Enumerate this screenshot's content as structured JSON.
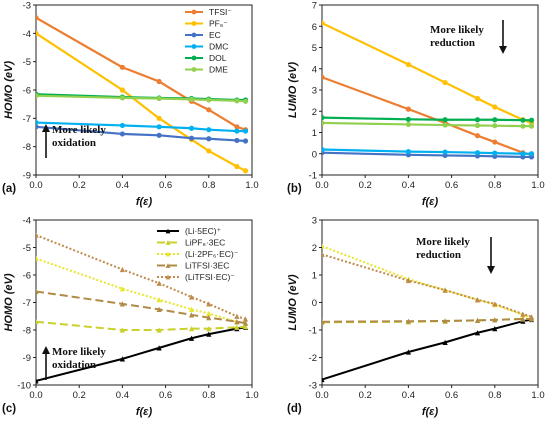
{
  "chart_data": [
    {
      "type": "line",
      "panel_label": "(a)",
      "xlabel": "f(ε)",
      "ylabel": "HOMO (eV)",
      "xlim": [
        0,
        1.0
      ],
      "ylim": [
        -9,
        -3
      ],
      "xticks": [
        "0.0",
        "0.2",
        "0.4",
        "0.6",
        "0.8",
        "1.0"
      ],
      "yticks": [
        "-9",
        "-8",
        "-7",
        "-6",
        "-5",
        "-4",
        "-3"
      ],
      "legend_position": "top-right",
      "annotation": {
        "lines": [
          "More likely",
          "oxidation"
        ],
        "arrow": "up"
      },
      "x": [
        0,
        0.4,
        0.57,
        0.72,
        0.8,
        0.93,
        0.97
      ],
      "series": [
        {
          "name": "TFSI⁻",
          "color": "#ED7D31",
          "values": [
            -3.45,
            -5.2,
            -5.7,
            -6.4,
            -6.7,
            -7.3,
            -7.4
          ]
        },
        {
          "name": "PF₆⁻",
          "color": "#FFC000",
          "values": [
            -4.0,
            -6.0,
            -7.0,
            -7.75,
            -8.15,
            -8.7,
            -8.85
          ]
        },
        {
          "name": "EC",
          "color": "#4472C4",
          "values": [
            -7.3,
            -7.55,
            -7.6,
            -7.7,
            -7.72,
            -7.78,
            -7.8
          ]
        },
        {
          "name": "DMC",
          "color": "#00B0F0",
          "values": [
            -7.15,
            -7.25,
            -7.3,
            -7.35,
            -7.4,
            -7.45,
            -7.45
          ]
        },
        {
          "name": "DOL",
          "color": "#00B050",
          "values": [
            -6.15,
            -6.25,
            -6.28,
            -6.3,
            -6.32,
            -6.35,
            -6.35
          ]
        },
        {
          "name": "DME",
          "color": "#92D050",
          "values": [
            -6.2,
            -6.28,
            -6.3,
            -6.33,
            -6.35,
            -6.38,
            -6.4
          ]
        }
      ]
    },
    {
      "type": "line",
      "panel_label": "(b)",
      "xlabel": "f(ε)",
      "ylabel": "LUMO (eV)",
      "xlim": [
        0,
        1.0
      ],
      "ylim": [
        -1,
        7
      ],
      "xticks": [
        "0.0",
        "0.2",
        "0.4",
        "0.6",
        "0.8",
        "1.0"
      ],
      "yticks": [
        "-1",
        "0",
        "1",
        "2",
        "3",
        "4",
        "5",
        "6",
        "7"
      ],
      "annotation": {
        "lines": [
          "More likely",
          "reduction"
        ],
        "arrow": "down"
      },
      "x": [
        0,
        0.4,
        0.57,
        0.72,
        0.8,
        0.93,
        0.97
      ],
      "series": [
        {
          "name": "TFSI⁻",
          "color": "#ED7D31",
          "values": [
            3.6,
            2.1,
            1.45,
            0.85,
            0.55,
            0.05,
            -0.05
          ]
        },
        {
          "name": "PF₆⁻",
          "color": "#FFC000",
          "values": [
            6.15,
            4.2,
            3.35,
            2.6,
            2.2,
            1.6,
            1.45
          ]
        },
        {
          "name": "EC",
          "color": "#4472C4",
          "values": [
            0.05,
            -0.05,
            -0.08,
            -0.1,
            -0.12,
            -0.15,
            -0.15
          ]
        },
        {
          "name": "DMC",
          "color": "#00B0F0",
          "values": [
            0.2,
            0.1,
            0.08,
            0.05,
            0.03,
            0.0,
            0.0
          ]
        },
        {
          "name": "DOL",
          "color": "#00B050",
          "values": [
            1.7,
            1.62,
            1.6,
            1.6,
            1.6,
            1.58,
            1.58
          ]
        },
        {
          "name": "DME",
          "color": "#92D050",
          "values": [
            1.45,
            1.38,
            1.35,
            1.33,
            1.32,
            1.3,
            1.3
          ]
        }
      ]
    },
    {
      "type": "line",
      "panel_label": "(c)",
      "xlabel": "f(ε)",
      "ylabel": "HOMO (eV)",
      "xlim": [
        0,
        1.0
      ],
      "ylim": [
        -10,
        -4
      ],
      "xticks": [
        "0.0",
        "0.2",
        "0.4",
        "0.6",
        "0.8",
        "1.0"
      ],
      "yticks": [
        "-10",
        "-9",
        "-8",
        "-7",
        "-6",
        "-5",
        "-4"
      ],
      "legend_position": "top-right",
      "annotation": {
        "lines": [
          "More likely",
          "oxidation"
        ],
        "arrow": "up"
      },
      "x": [
        0,
        0.4,
        0.57,
        0.72,
        0.8,
        0.93,
        0.97
      ],
      "series": [
        {
          "name": "(Li·5EC)⁺",
          "color": "#000000",
          "dash": "",
          "values": [
            -9.85,
            -9.05,
            -8.65,
            -8.3,
            -8.15,
            -7.95,
            -7.9
          ]
        },
        {
          "name": "LiPF₆·3EC",
          "color": "#C9D12A",
          "dash": "8,4",
          "values": [
            -7.7,
            -8.0,
            -8.0,
            -7.95,
            -7.95,
            -7.9,
            -7.88
          ]
        },
        {
          "name": "(Li·2PF₆·EC)⁻",
          "color": "#E6E62C",
          "dash": "2,2",
          "values": [
            -5.4,
            -6.5,
            -6.9,
            -7.25,
            -7.4,
            -7.7,
            -7.75
          ]
        },
        {
          "name": "LiTFSI·3EC",
          "color": "#B08B48",
          "dash": "8,4",
          "values": [
            -6.6,
            -7.05,
            -7.25,
            -7.45,
            -7.55,
            -7.7,
            -7.75
          ]
        },
        {
          "name": "(LiTFSI·EC)⁻",
          "color": "#C08A4A",
          "dash": "2,2",
          "values": [
            -4.55,
            -5.8,
            -6.3,
            -6.8,
            -7.05,
            -7.5,
            -7.6
          ]
        }
      ]
    },
    {
      "type": "line",
      "panel_label": "(d)",
      "xlabel": "f(ε)",
      "ylabel": "LUMO (eV)",
      "xlim": [
        0,
        1.0
      ],
      "ylim": [
        -3,
        3
      ],
      "xticks": [
        "0.0",
        "0.2",
        "0.4",
        "0.6",
        "0.8",
        "1.0"
      ],
      "yticks": [
        "-3",
        "-2",
        "-1",
        "0",
        "1",
        "2",
        "3"
      ],
      "annotation": {
        "lines": [
          "More likely",
          "reduction"
        ],
        "arrow": "down"
      },
      "x": [
        0,
        0.4,
        0.57,
        0.72,
        0.8,
        0.93,
        0.97
      ],
      "series": [
        {
          "name": "(Li·5EC)⁺",
          "color": "#000000",
          "dash": "",
          "values": [
            -2.8,
            -1.8,
            -1.45,
            -1.1,
            -0.95,
            -0.68,
            -0.62
          ]
        },
        {
          "name": "LiPF₆·3EC",
          "color": "#C9D12A",
          "dash": "8,4",
          "values": [
            -0.72,
            -0.7,
            -0.68,
            -0.65,
            -0.63,
            -0.6,
            -0.6
          ]
        },
        {
          "name": "(Li·2PF₆·EC)⁻",
          "color": "#E6E62C",
          "dash": "2,2",
          "values": [
            2.05,
            0.85,
            0.45,
            0.1,
            -0.08,
            -0.45,
            -0.55
          ]
        },
        {
          "name": "LiTFSI·3EC",
          "color": "#B08B48",
          "dash": "8,4",
          "values": [
            -0.7,
            -0.68,
            -0.67,
            -0.65,
            -0.63,
            -0.6,
            -0.6
          ]
        },
        {
          "name": "(LiTFSI·EC)⁻",
          "color": "#C08A4A",
          "dash": "2,2",
          "values": [
            1.75,
            0.8,
            0.45,
            0.1,
            -0.05,
            -0.42,
            -0.52
          ]
        }
      ]
    }
  ]
}
